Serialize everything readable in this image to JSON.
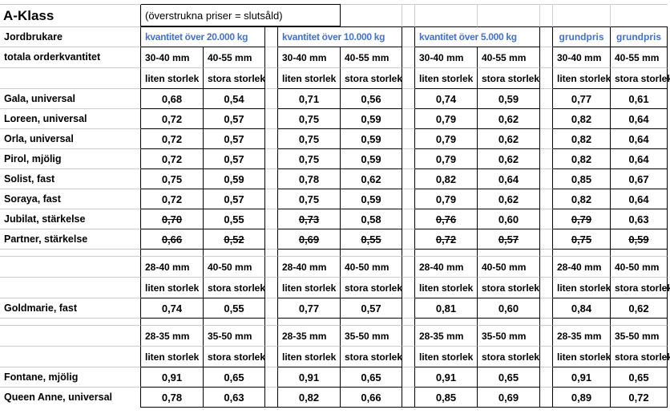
{
  "sheet": {
    "title": "A-Klass",
    "note": "(överstrukna priser = slutsåld)",
    "left_header_farmers": "Jordbrukare",
    "left_header_quantity": "totala orderkvantitet",
    "colors": {
      "accent": "#4472C4",
      "gridline": "#cdcdcd",
      "border": "#000000"
    },
    "col_groups": [
      {
        "title": "kvantitet över 20.000 kg",
        "merged": true
      },
      {
        "title": "kvantitet över 10.000 kg",
        "merged": true
      },
      {
        "title": "kvantitet över 5.000 kg",
        "merged": true
      },
      {
        "title": "grundpris",
        "title2": "grundpris",
        "merged": false
      }
    ],
    "size_blocks": {
      "top": {
        "mm": [
          "30-40 mm",
          "40-55 mm"
        ],
        "size": [
          "liten storlek",
          "stora storlek"
        ]
      },
      "mid": {
        "mm": [
          "28-40 mm",
          "40-50 mm"
        ],
        "size": [
          "liten storlek",
          "stora storlek"
        ]
      },
      "bottom": {
        "mm": [
          "28-35 mm",
          "35-50 mm"
        ],
        "size": [
          "liten storlek",
          "stora storlek"
        ]
      }
    },
    "rows_top": [
      {
        "label": "Gala, universal",
        "values": [
          "0,68",
          "0,54",
          "0,71",
          "0,56",
          "0,74",
          "0,59",
          "0,77",
          "0,61"
        ],
        "struck": [
          0,
          0,
          0,
          0,
          0,
          0,
          0,
          0
        ]
      },
      {
        "label": "Loreen, universal",
        "values": [
          "0,72",
          "0,57",
          "0,75",
          "0,59",
          "0,79",
          "0,62",
          "0,82",
          "0,64"
        ],
        "struck": [
          0,
          0,
          0,
          0,
          0,
          0,
          0,
          0
        ]
      },
      {
        "label": "Orla, universal",
        "values": [
          "0,72",
          "0,57",
          "0,75",
          "0,59",
          "0,79",
          "0,62",
          "0,82",
          "0,64"
        ],
        "struck": [
          0,
          0,
          0,
          0,
          0,
          0,
          0,
          0
        ]
      },
      {
        "label": "Pirol, mjölig",
        "values": [
          "0,72",
          "0,57",
          "0,75",
          "0,59",
          "0,79",
          "0,62",
          "0,82",
          "0,64"
        ],
        "struck": [
          0,
          0,
          0,
          0,
          0,
          0,
          0,
          0
        ]
      },
      {
        "label": "Solist, fast",
        "values": [
          "0,75",
          "0,59",
          "0,78",
          "0,62",
          "0,82",
          "0,64",
          "0,85",
          "0,67"
        ],
        "struck": [
          0,
          0,
          0,
          0,
          0,
          0,
          0,
          0
        ]
      },
      {
        "label": "Soraya, fast",
        "values": [
          "0,72",
          "0,57",
          "0,75",
          "0,59",
          "0,79",
          "0,62",
          "0,82",
          "0,64"
        ],
        "struck": [
          0,
          0,
          0,
          0,
          0,
          0,
          0,
          0
        ]
      },
      {
        "label": "Jubilat, stärkelse",
        "values": [
          "0,70",
          "0,55",
          "0,73",
          "0,58",
          "0,76",
          "0,60",
          "0,79",
          "0,63"
        ],
        "struck": [
          1,
          0,
          1,
          0,
          1,
          0,
          1,
          0
        ]
      },
      {
        "label": "Partner, stärkelse",
        "values": [
          "0,66",
          "0,52",
          "0,69",
          "0,55",
          "0,72",
          "0,57",
          "0,75",
          "0,59"
        ],
        "struck": [
          1,
          1,
          1,
          1,
          1,
          1,
          1,
          1
        ]
      }
    ],
    "rows_mid": [
      {
        "label": "Goldmarie, fast",
        "values": [
          "0,74",
          "0,55",
          "0,77",
          "0,57",
          "0,81",
          "0,60",
          "0,84",
          "0,62"
        ],
        "struck": [
          0,
          0,
          0,
          0,
          0,
          0,
          0,
          0
        ]
      }
    ],
    "rows_bottom": [
      {
        "label": "Fontane, mjölig",
        "values": [
          "0,91",
          "0,65",
          "0,91",
          "0,65",
          "0,91",
          "0,65",
          "0,91",
          "0,65"
        ],
        "struck": [
          0,
          0,
          0,
          0,
          0,
          0,
          0,
          0
        ]
      },
      {
        "label": "Queen Anne, universal",
        "values": [
          "0,78",
          "0,63",
          "0,82",
          "0,66",
          "0,85",
          "0,69",
          "0,89",
          "0,72"
        ],
        "struck": [
          0,
          0,
          0,
          0,
          0,
          0,
          0,
          0
        ]
      }
    ]
  }
}
